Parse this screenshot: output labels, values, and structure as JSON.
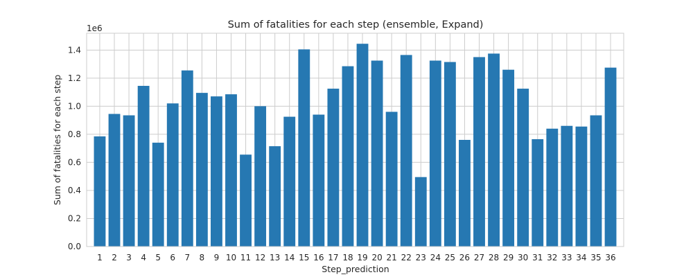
{
  "chart_data": {
    "type": "bar",
    "title": "Sum of fatalities for each step (ensemble, Expand)",
    "xlabel": "Step_prediction",
    "ylabel": "Sum of fatalities for each step",
    "y_scale_label": "1e6",
    "categories": [
      "1",
      "2",
      "3",
      "4",
      "5",
      "6",
      "7",
      "8",
      "9",
      "10",
      "11",
      "12",
      "13",
      "14",
      "15",
      "16",
      "17",
      "18",
      "19",
      "20",
      "21",
      "22",
      "23",
      "24",
      "25",
      "26",
      "27",
      "28",
      "29",
      "30",
      "31",
      "32",
      "33",
      "34",
      "35",
      "36"
    ],
    "values": [
      0.785,
      0.945,
      0.935,
      1.145,
      0.74,
      1.02,
      1.255,
      1.095,
      1.07,
      1.085,
      0.655,
      1.0,
      0.715,
      0.925,
      1.405,
      0.94,
      1.125,
      1.285,
      1.445,
      1.325,
      0.96,
      1.365,
      0.495,
      1.325,
      1.315,
      0.76,
      1.35,
      1.375,
      1.26,
      1.125,
      0.765,
      0.84,
      0.86,
      0.855,
      0.935,
      1.275
    ],
    "yticks": [
      "0.0",
      "0.2",
      "0.4",
      "0.6",
      "0.8",
      "1.0",
      "1.2",
      "1.4"
    ],
    "ytick_values": [
      0.0,
      0.2,
      0.4,
      0.6,
      0.8,
      1.0,
      1.2,
      1.4
    ],
    "ylim": [
      0,
      1.52
    ],
    "grid": true,
    "bar_color": "#2678b2",
    "grid_color": "#cccccc"
  }
}
